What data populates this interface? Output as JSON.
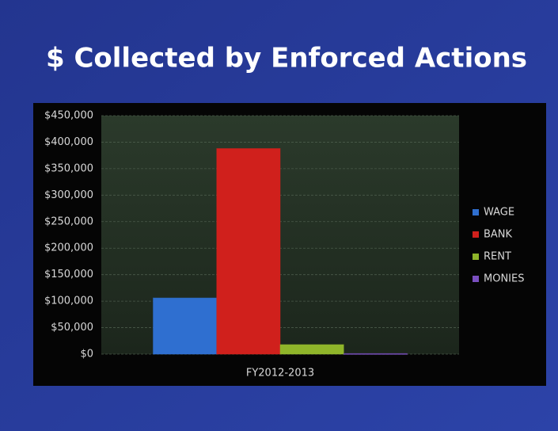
{
  "chart_data": {
    "type": "bar",
    "title": "$ Collected by Enforced Actions",
    "categories": [
      "FY2012-2013"
    ],
    "series": [
      {
        "name": "WAGE",
        "color": "#2f6fd0",
        "values": [
          106000
        ]
      },
      {
        "name": "BANK",
        "color": "#d0201c",
        "values": [
          388000
        ]
      },
      {
        "name": "RENT",
        "color": "#8fb52a",
        "values": [
          18000
        ]
      },
      {
        "name": "MONIES",
        "color": "#7a4fc0",
        "values": [
          1000
        ]
      }
    ],
    "ylim": [
      0,
      450000
    ],
    "yticks": [
      {
        "value": 0,
        "label": "$0"
      },
      {
        "value": 50000,
        "label": "$50,000"
      },
      {
        "value": 100000,
        "label": "$100,000"
      },
      {
        "value": 150000,
        "label": "$150,000"
      },
      {
        "value": 200000,
        "label": "$200,000"
      },
      {
        "value": 250000,
        "label": "$250,000"
      },
      {
        "value": 300000,
        "label": "$300,000"
      },
      {
        "value": 350000,
        "label": "$350,000"
      },
      {
        "value": 400000,
        "label": "$400,000"
      },
      {
        "value": 450000,
        "label": "$450,000"
      }
    ],
    "grid": true,
    "legend": "right"
  }
}
